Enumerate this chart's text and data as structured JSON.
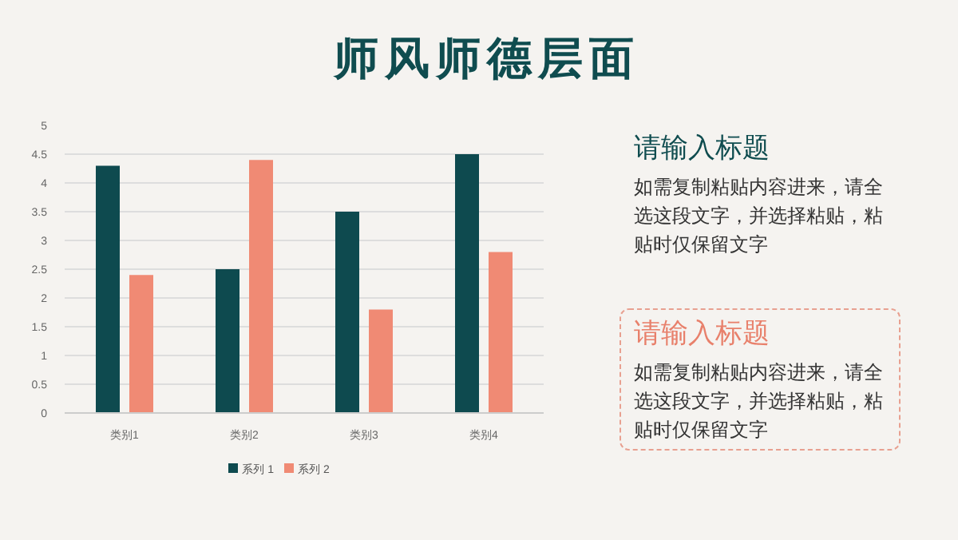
{
  "chart_data": {
    "type": "bar",
    "title": "师风师德层面",
    "categories": [
      "类别1",
      "类别2",
      "类别3",
      "类别4"
    ],
    "series": [
      {
        "name": "系列 1",
        "color": "#0e4a4f",
        "values": [
          4.3,
          2.5,
          3.5,
          4.5
        ]
      },
      {
        "name": "系列 2",
        "color": "#f08a74",
        "values": [
          2.4,
          4.4,
          1.8,
          2.8
        ]
      }
    ],
    "ylim": [
      0,
      5
    ],
    "yticks": [
      0,
      0.5,
      1,
      1.5,
      2,
      2.5,
      3,
      3.5,
      4,
      4.5,
      5
    ],
    "grid": "y",
    "legend": "bottom",
    "annotations": [
      "请输入标题",
      "如需复制粘贴内容进来，请全选这段文字，并选择粘贴，粘贴时仅保留文字",
      "请输入标题",
      "如需复制粘贴内容进来，请全选这段文字，并选择粘贴，粘贴时仅保留文字"
    ]
  }
}
